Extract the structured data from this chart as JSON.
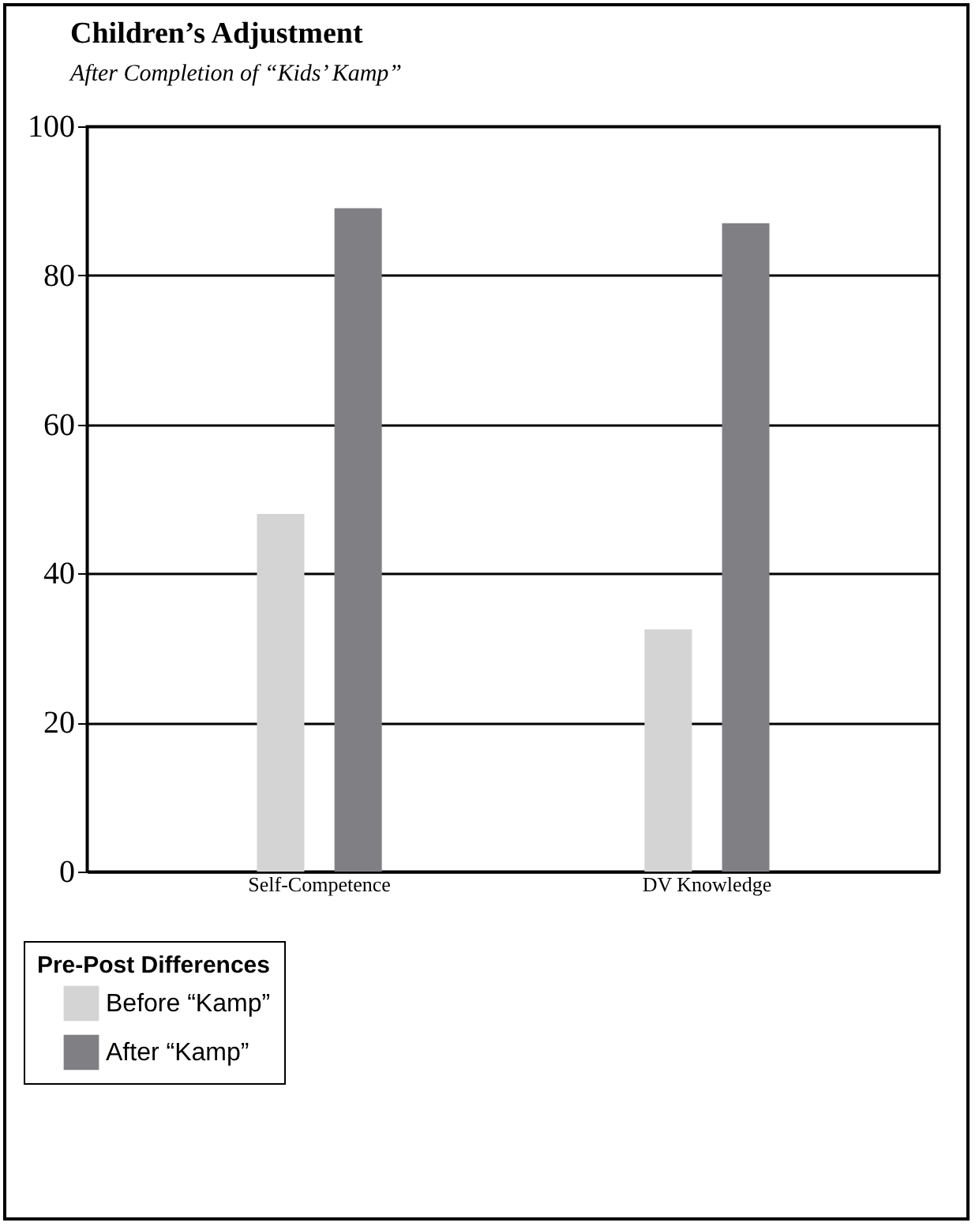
{
  "chart_data": {
    "type": "bar",
    "title": "Children’s Adjustment",
    "subtitle": "After Completion of “Kids’ Kamp”",
    "categories": [
      "Self-Competence",
      "DV Knowledge"
    ],
    "series": [
      {
        "name": "Before “Kamp”",
        "color": "#d4d4d4",
        "values": [
          48,
          32.5
        ]
      },
      {
        "name": "After “Kamp”",
        "color": "#808084",
        "values": [
          89,
          87
        ]
      }
    ],
    "legend_title": "Pre-Post Differences",
    "ylim": [
      0,
      100
    ],
    "yticks": [
      0,
      20,
      40,
      60,
      80,
      100
    ],
    "grid": "y",
    "legend": "bottom left"
  }
}
